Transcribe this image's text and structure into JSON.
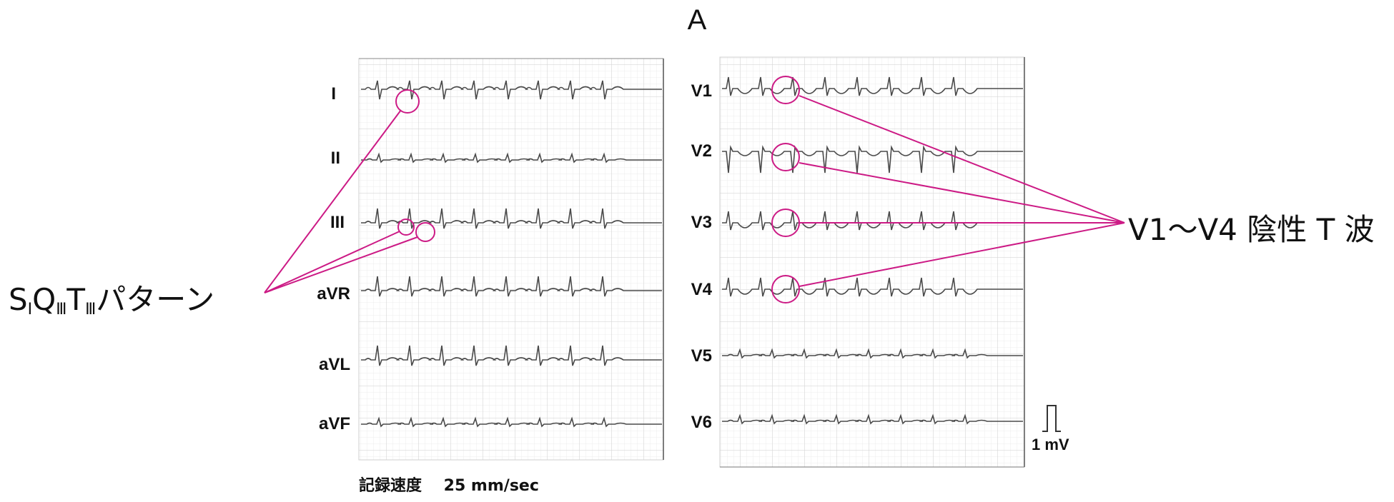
{
  "figure": {
    "panel_label": "A",
    "limb_leads": [
      "I",
      "II",
      "III",
      "aVR",
      "aVL",
      "aVF"
    ],
    "chest_leads": [
      "V1",
      "V2",
      "V3",
      "V4",
      "V5",
      "V6"
    ],
    "annotation_left": {
      "parts": [
        "S",
        "I",
        "Q",
        "Ⅲ",
        "T",
        "Ⅲ",
        "パターン"
      ]
    },
    "annotation_right": "V1～V4 陰性 T 波",
    "caption": {
      "label": "記録速度",
      "value": "25 mm/sec"
    },
    "calibration_label": "1 mV",
    "colors": {
      "annotation": "#cc1a85",
      "grid_minor": "#e9e9e9",
      "grid_major": "#d2d2d2",
      "trace": "#4a4a4a"
    }
  }
}
